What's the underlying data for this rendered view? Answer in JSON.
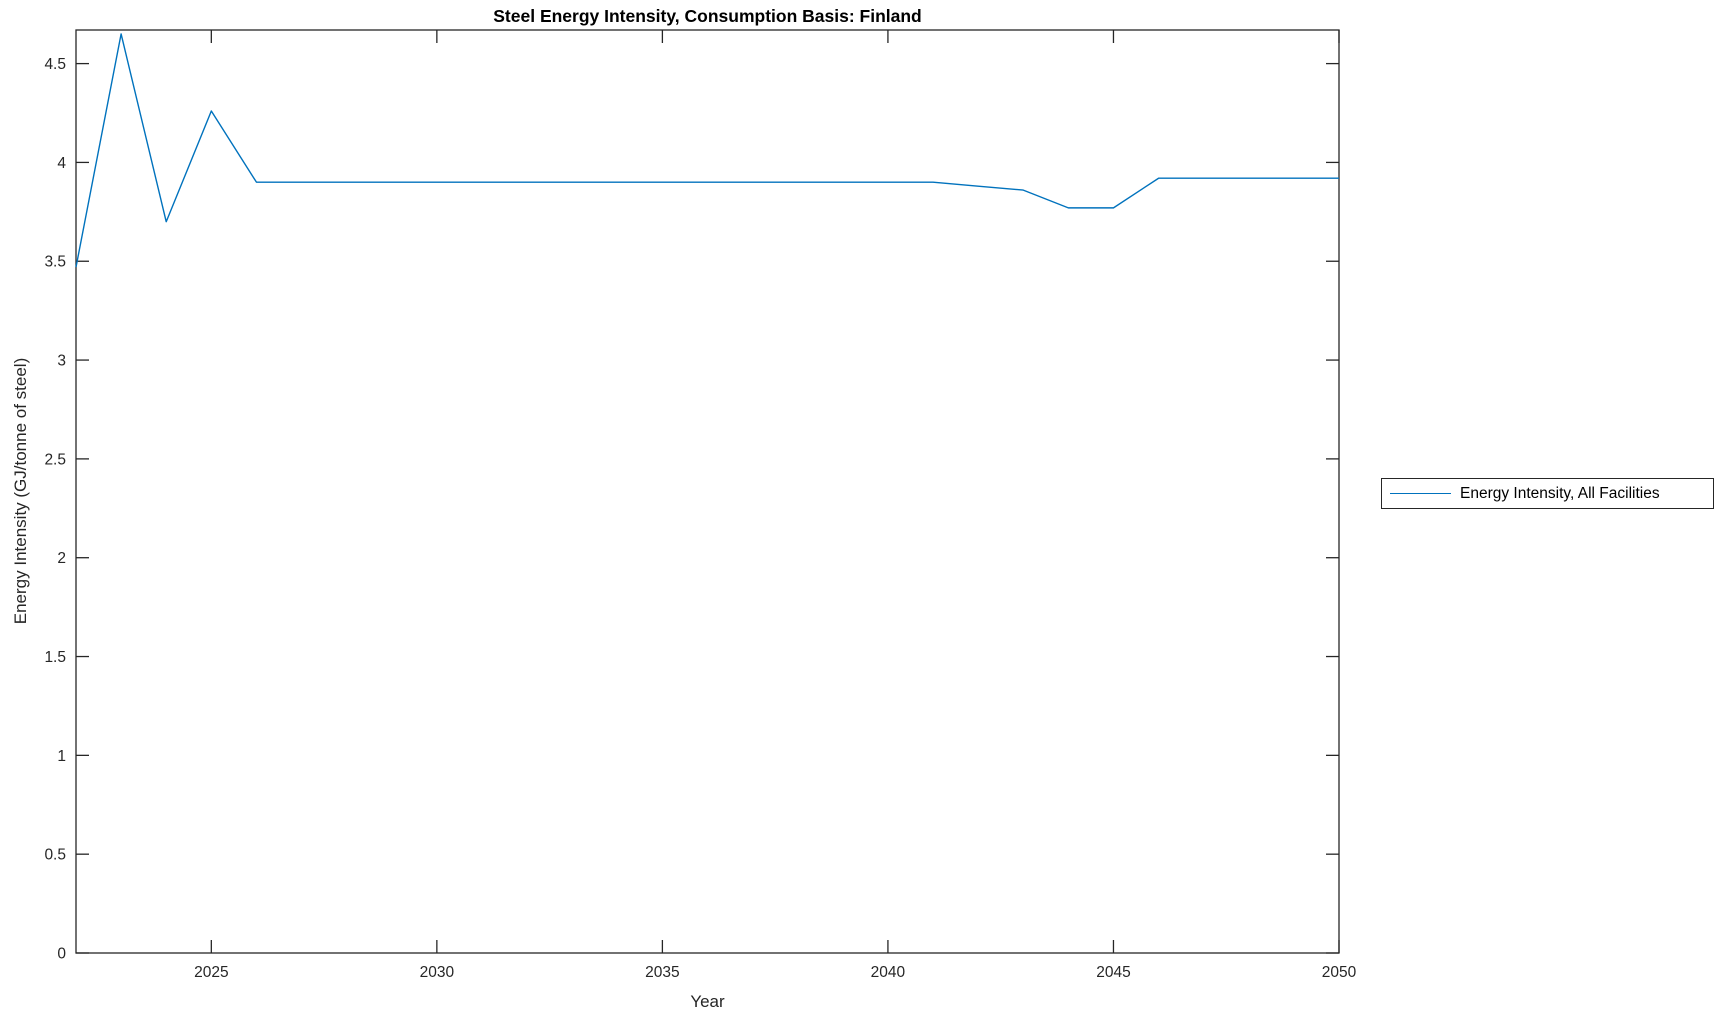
{
  "figure": {
    "background": "#ffffff"
  },
  "chart_data": {
    "type": "line",
    "title": "Steel Energy Intensity, Consumption Basis: Finland",
    "xlabel": "Year",
    "ylabel": "Energy Intensity (GJ/tonne of steel)",
    "xlim": [
      2022,
      2050
    ],
    "ylim": [
      0,
      4.67
    ],
    "x_ticks": [
      2025,
      2030,
      2035,
      2040,
      2045,
      2050
    ],
    "y_ticks": [
      0,
      0.5,
      1,
      1.5,
      2,
      2.5,
      3,
      3.5,
      4,
      4.5
    ],
    "grid": false,
    "legend_position": "outside-right",
    "series": [
      {
        "name": "Energy Intensity, All Facilities",
        "color": "#0072BD",
        "x": [
          2022,
          2023,
          2024,
          2025,
          2026,
          2027,
          2028,
          2029,
          2030,
          2031,
          2032,
          2033,
          2034,
          2035,
          2036,
          2037,
          2038,
          2039,
          2040,
          2041,
          2042,
          2043,
          2044,
          2045,
          2046,
          2047,
          2048,
          2049,
          2050
        ],
        "values": [
          3.47,
          4.65,
          3.7,
          4.26,
          3.9,
          3.9,
          3.9,
          3.9,
          3.9,
          3.9,
          3.9,
          3.9,
          3.9,
          3.9,
          3.9,
          3.9,
          3.9,
          3.9,
          3.9,
          3.9,
          3.88,
          3.86,
          3.77,
          3.77,
          3.92,
          3.92,
          3.92,
          3.92,
          3.92
        ]
      }
    ]
  },
  "legend": {
    "entries": [
      {
        "label": "Energy Intensity, All Facilities",
        "color": "#0072BD"
      }
    ]
  },
  "colors": {
    "line": "#0072BD",
    "axis": "#262626",
    "title": "#000000",
    "background": "#ffffff"
  }
}
